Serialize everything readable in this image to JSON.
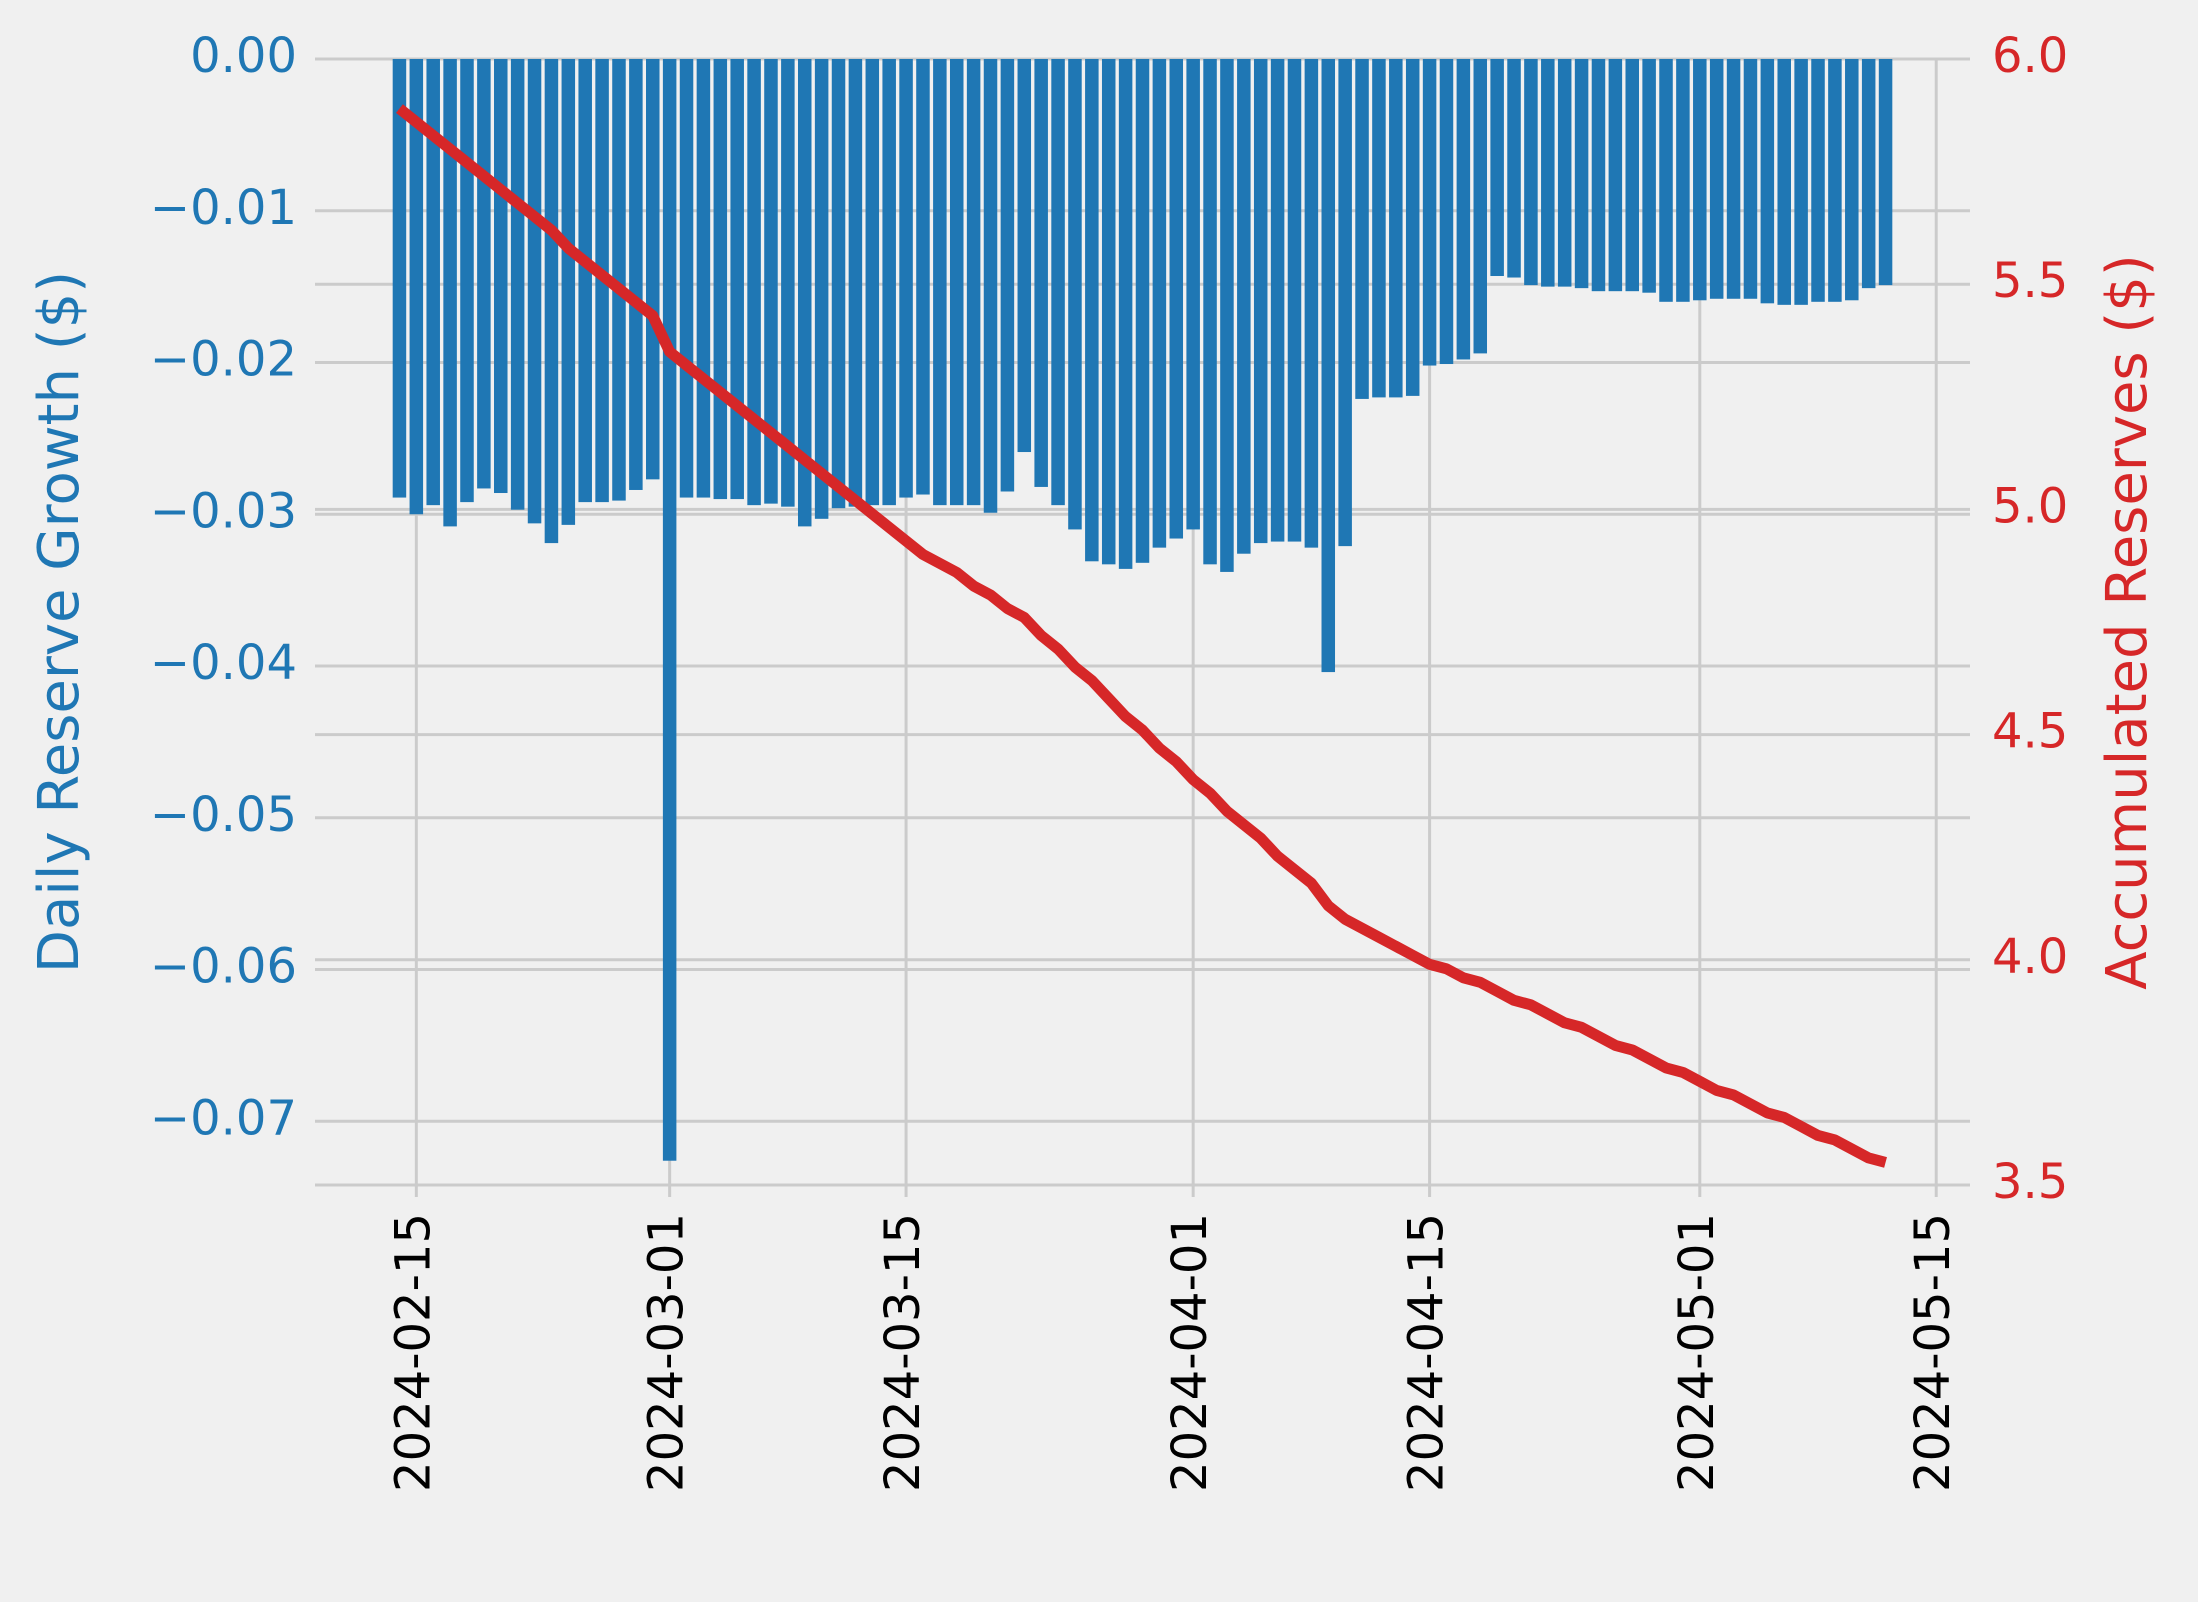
{
  "chart_data": {
    "type": "bar",
    "x": [
      "2024-02-14",
      "2024-02-15",
      "2024-02-16",
      "2024-02-17",
      "2024-02-18",
      "2024-02-19",
      "2024-02-20",
      "2024-02-21",
      "2024-02-22",
      "2024-02-23",
      "2024-02-24",
      "2024-02-25",
      "2024-02-26",
      "2024-02-27",
      "2024-02-28",
      "2024-02-29",
      "2024-03-01",
      "2024-03-02",
      "2024-03-03",
      "2024-03-04",
      "2024-03-05",
      "2024-03-06",
      "2024-03-07",
      "2024-03-08",
      "2024-03-09",
      "2024-03-10",
      "2024-03-11",
      "2024-03-12",
      "2024-03-13",
      "2024-03-14",
      "2024-03-15",
      "2024-03-16",
      "2024-03-17",
      "2024-03-18",
      "2024-03-19",
      "2024-03-20",
      "2024-03-21",
      "2024-03-22",
      "2024-03-23",
      "2024-03-24",
      "2024-03-25",
      "2024-03-26",
      "2024-03-27",
      "2024-03-28",
      "2024-03-29",
      "2024-03-30",
      "2024-03-31",
      "2024-04-01",
      "2024-04-02",
      "2024-04-03",
      "2024-04-04",
      "2024-04-05",
      "2024-04-06",
      "2024-04-07",
      "2024-04-08",
      "2024-04-09",
      "2024-04-10",
      "2024-04-11",
      "2024-04-12",
      "2024-04-13",
      "2024-04-14",
      "2024-04-15",
      "2024-04-16",
      "2024-04-17",
      "2024-04-18",
      "2024-04-19",
      "2024-04-20",
      "2024-04-21",
      "2024-04-22",
      "2024-04-23",
      "2024-04-24",
      "2024-04-25",
      "2024-04-26",
      "2024-04-27",
      "2024-04-28",
      "2024-04-29",
      "2024-04-30",
      "2024-05-01",
      "2024-05-02",
      "2024-05-03",
      "2024-05-04",
      "2024-05-05",
      "2024-05-06",
      "2024-05-07",
      "2024-05-08",
      "2024-05-09",
      "2024-05-10",
      "2024-05-11",
      "2024-05-12"
    ],
    "series": [
      {
        "type": "bar",
        "color": "#1f77b4",
        "values": [
          -0.0289,
          -0.03,
          -0.0294,
          -0.0308,
          -0.0292,
          -0.0283,
          -0.0286,
          -0.0297,
          -0.0306,
          -0.0319,
          -0.0307,
          -0.0292,
          -0.0292,
          -0.0291,
          -0.0284,
          -0.0277,
          -0.0726,
          -0.0289,
          -0.0289,
          -0.029,
          -0.029,
          -0.0294,
          -0.0293,
          -0.0295,
          -0.0308,
          -0.0303,
          -0.0296,
          -0.0295,
          -0.0294,
          -0.0294,
          -0.0289,
          -0.0287,
          -0.0294,
          -0.0294,
          -0.0294,
          -0.0299,
          -0.0285,
          -0.0259,
          -0.0282,
          -0.0294,
          -0.031,
          -0.0331,
          -0.0333,
          -0.0336,
          -0.0332,
          -0.0322,
          -0.0316,
          -0.031,
          -0.0333,
          -0.0338,
          -0.0326,
          -0.0319,
          -0.0318,
          -0.0318,
          -0.0322,
          -0.0404,
          -0.0321,
          -0.0224,
          -0.0223,
          -0.0223,
          -0.0222,
          -0.0202,
          -0.0201,
          -0.0198,
          -0.0194,
          -0.0143,
          -0.0144,
          -0.0149,
          -0.015,
          -0.015,
          -0.0151,
          -0.0153,
          -0.0153,
          -0.0153,
          -0.0154,
          -0.016,
          -0.016,
          -0.0159,
          -0.0158,
          -0.0158,
          -0.0158,
          -0.0161,
          -0.0162,
          -0.0162,
          -0.016,
          -0.016,
          -0.0159,
          -0.0151,
          -0.0149
        ]
      },
      {
        "type": "line",
        "axis": "y2",
        "color": "#d62728",
        "values": [
          5.89,
          5.86,
          5.83,
          5.8,
          5.77,
          5.74,
          5.71,
          5.68,
          5.65,
          5.62,
          5.58,
          5.55,
          5.52,
          5.49,
          5.46,
          5.43,
          5.35,
          5.32,
          5.29,
          5.26,
          5.23,
          5.2,
          5.17,
          5.14,
          5.11,
          5.08,
          5.05,
          5.02,
          4.99,
          4.96,
          4.93,
          4.9,
          4.88,
          4.86,
          4.83,
          4.81,
          4.78,
          4.76,
          4.72,
          4.69,
          4.65,
          4.62,
          4.58,
          4.54,
          4.51,
          4.47,
          4.44,
          4.4,
          4.37,
          4.33,
          4.3,
          4.27,
          4.23,
          4.2,
          4.17,
          4.12,
          4.09,
          4.07,
          4.05,
          4.03,
          4.01,
          3.99,
          3.98,
          3.96,
          3.95,
          3.93,
          3.91,
          3.9,
          3.88,
          3.86,
          3.85,
          3.83,
          3.81,
          3.8,
          3.78,
          3.76,
          3.75,
          3.73,
          3.71,
          3.7,
          3.68,
          3.66,
          3.65,
          3.63,
          3.61,
          3.6,
          3.58,
          3.56,
          3.55
        ]
      }
    ],
    "y_label": "Daily Reserve Growth ($)",
    "y2_label": "Accumulated Reserves ($)",
    "xlim": [
      "2024-02-09",
      "2024-05-17"
    ],
    "xticks": [
      "2024-02-15",
      "2024-03-01",
      "2024-03-15",
      "2024-04-01",
      "2024-04-15",
      "2024-05-01",
      "2024-05-15"
    ],
    "ylim": [
      -0.0742,
      0
    ],
    "yticks": [
      {
        "value": 0,
        "label": "0.00"
      },
      {
        "value": -0.01,
        "label": "−0.01"
      },
      {
        "value": -0.02,
        "label": "−0.02"
      },
      {
        "value": -0.03,
        "label": "−0.03"
      },
      {
        "value": -0.04,
        "label": "−0.04"
      },
      {
        "value": -0.05,
        "label": "−0.05"
      },
      {
        "value": -0.06,
        "label": "−0.06"
      },
      {
        "value": -0.07,
        "label": "−0.07"
      }
    ],
    "y2lim": [
      3.5,
      6.0
    ],
    "y2ticks": [
      {
        "value": 6.0,
        "label": "6.0"
      },
      5.5,
      {
        "value": 5.0,
        "label": "5.0"
      },
      4.5,
      {
        "value": 4.0,
        "label": "4.0"
      },
      3.5
    ],
    "grid": true
  }
}
